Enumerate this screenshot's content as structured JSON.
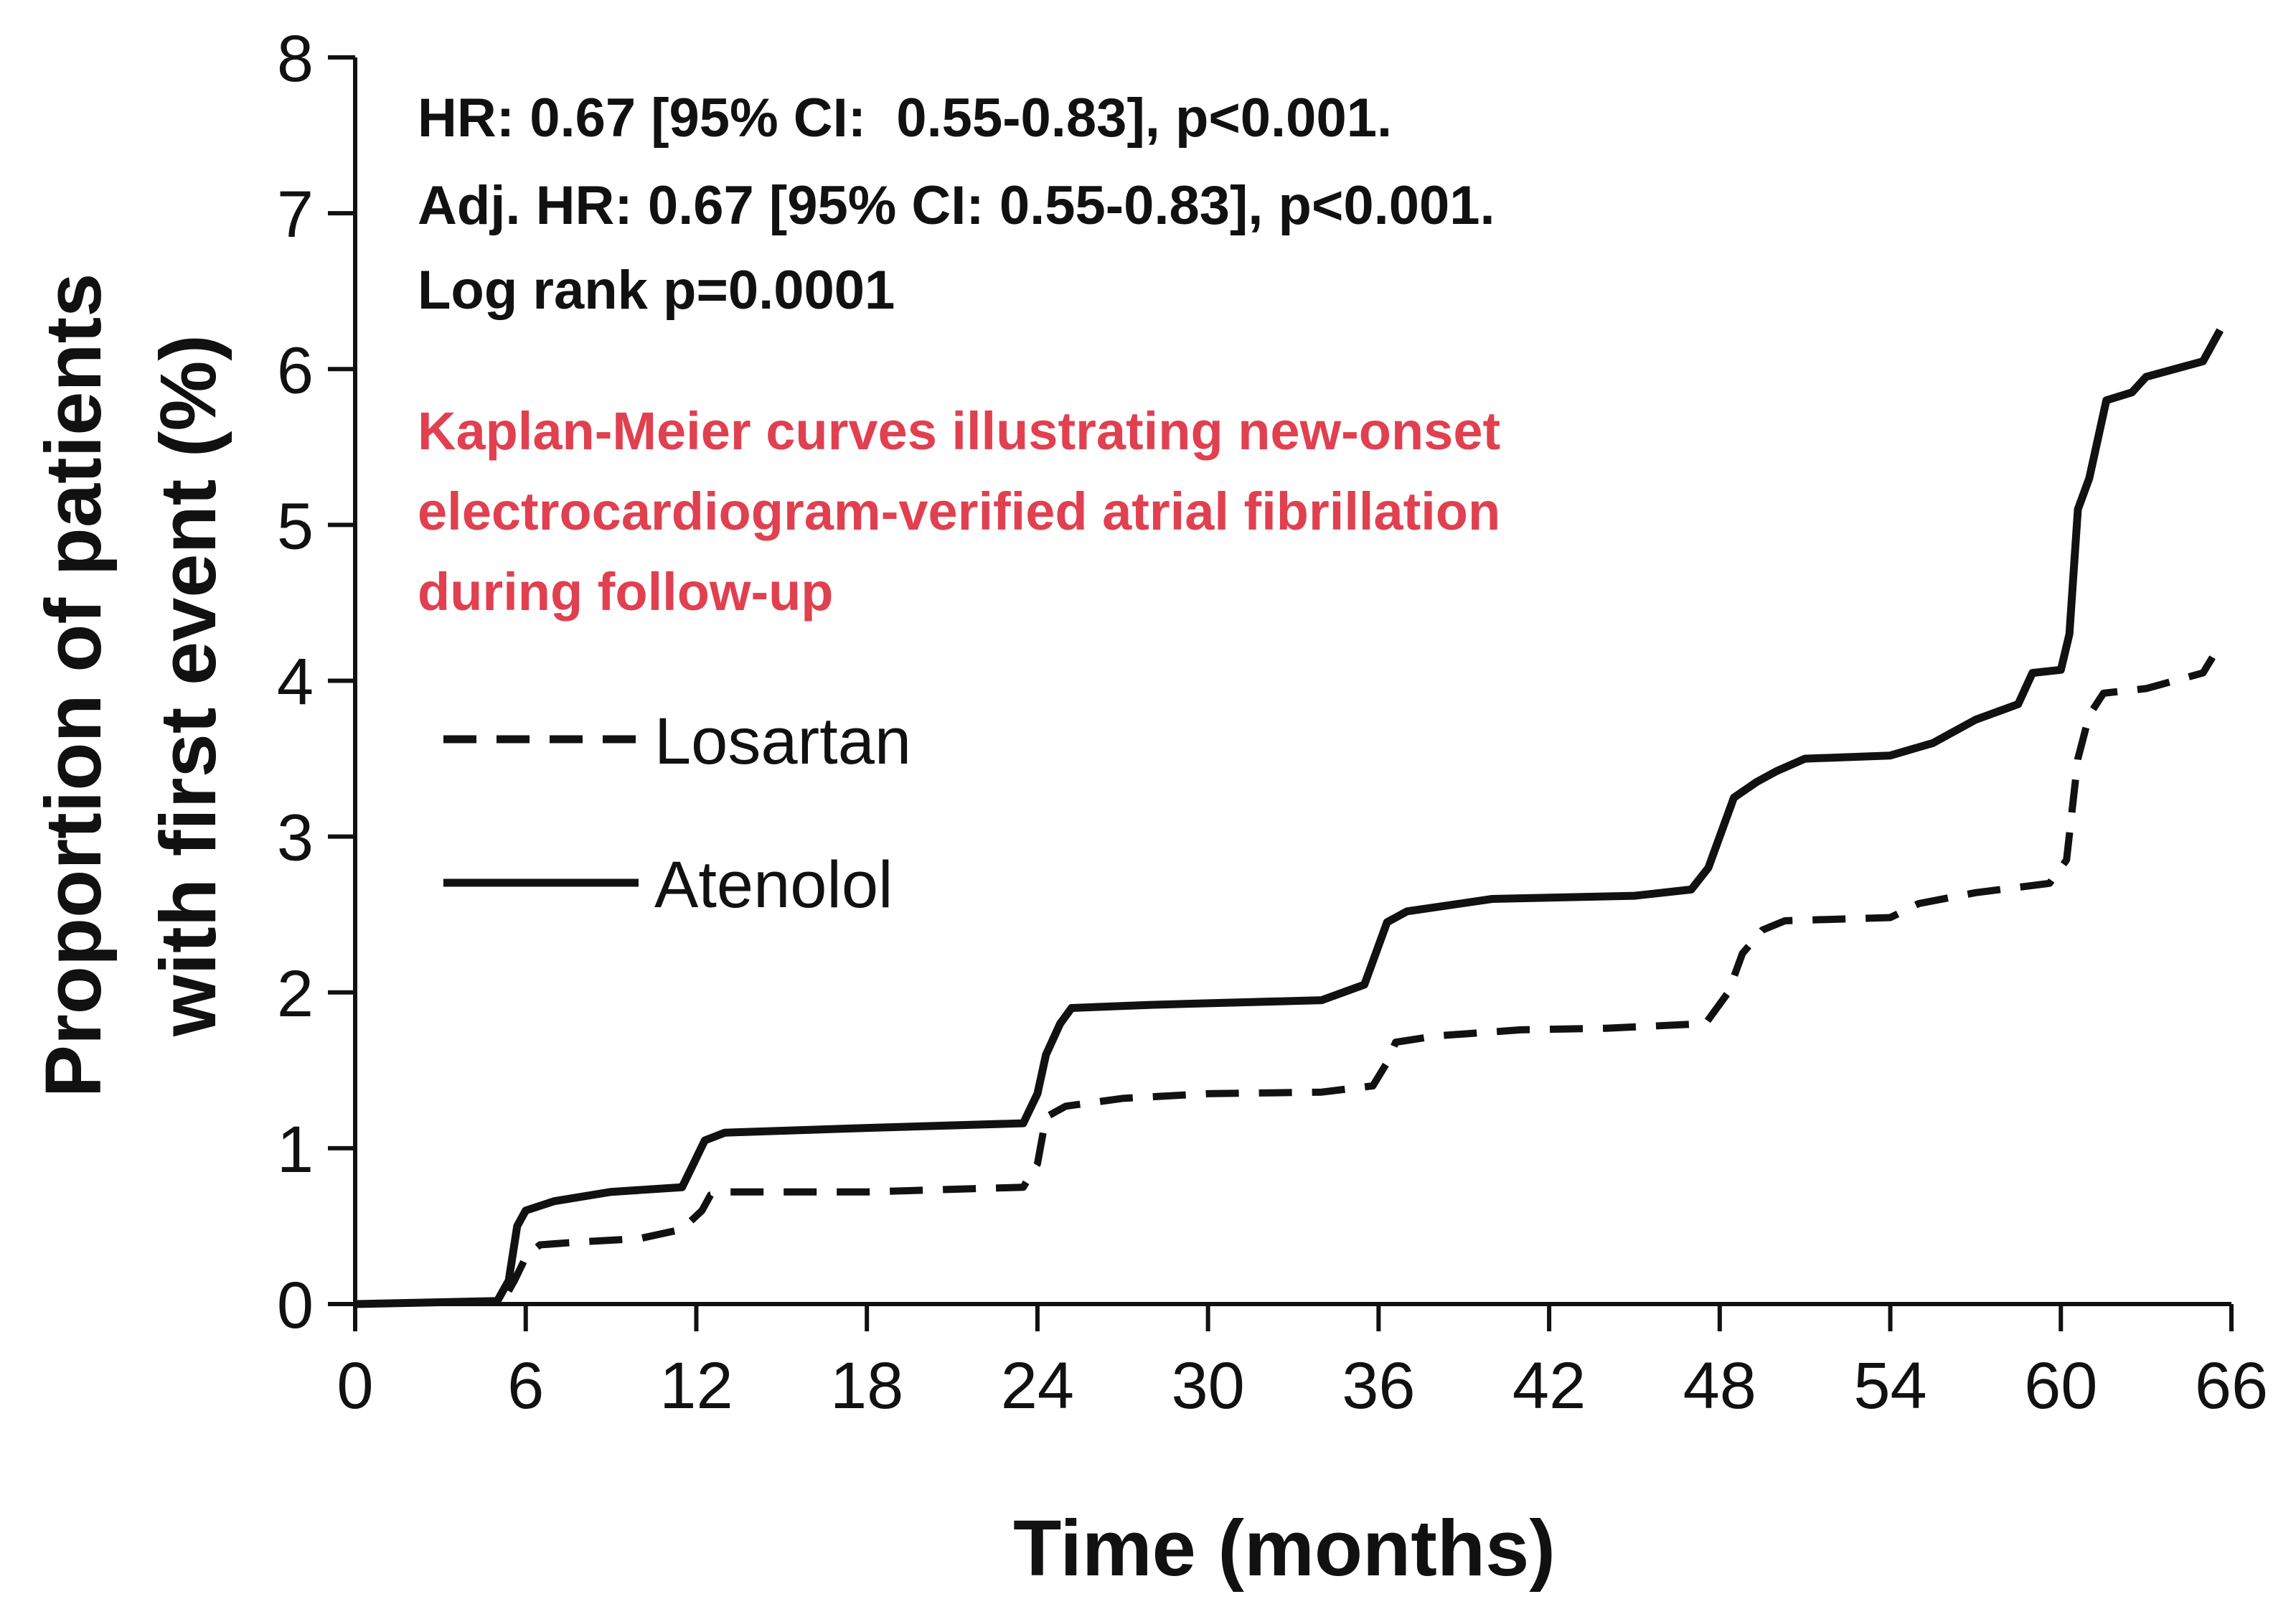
{
  "chart_data": {
    "type": "line",
    "xlabel": "Time (months)",
    "ylabel_lines": [
      "Proportion of patients",
      "with first event (%)"
    ],
    "xlim": [
      0,
      66
    ],
    "ylim": [
      0,
      8
    ],
    "x_ticks": [
      0,
      6,
      12,
      18,
      24,
      30,
      36,
      42,
      48,
      54,
      60,
      66
    ],
    "y_ticks": [
      0,
      1,
      2,
      3,
      4,
      5,
      6,
      7,
      8
    ],
    "grid": false,
    "legend_position": "middle-left",
    "annotations": [
      "HR: 0.67 [95% CI:  0.55-0.83], p<0.001.",
      "Adj. HR: 0.67 [95% CI: 0.55-0.83], p<0.001.",
      "Log rank p=0.0001"
    ],
    "caption_lines": [
      "Kaplan-Meier curves illustrating new-onset",
      "electrocardiogram-verified atrial fibrillation",
      "during follow-up"
    ],
    "caption_color": "#e0404f",
    "series": [
      {
        "name": "Losartan",
        "style": "dashed",
        "color": "#111111",
        "points": [
          [
            0,
            0
          ],
          [
            5.2,
            0.02
          ],
          [
            5.6,
            0.15
          ],
          [
            6,
            0.3
          ],
          [
            6.5,
            0.38
          ],
          [
            8,
            0.4
          ],
          [
            10,
            0.42
          ],
          [
            11.5,
            0.48
          ],
          [
            12.2,
            0.6
          ],
          [
            12.5,
            0.7
          ],
          [
            13,
            0.72
          ],
          [
            18,
            0.72
          ],
          [
            23.5,
            0.75
          ],
          [
            24,
            0.9
          ],
          [
            24.3,
            1.2
          ],
          [
            25,
            1.27
          ],
          [
            27,
            1.32
          ],
          [
            30,
            1.35
          ],
          [
            34,
            1.36
          ],
          [
            35.8,
            1.4
          ],
          [
            36.3,
            1.55
          ],
          [
            36.6,
            1.68
          ],
          [
            38,
            1.72
          ],
          [
            41,
            1.76
          ],
          [
            44,
            1.77
          ],
          [
            47.5,
            1.8
          ],
          [
            48.3,
            2.0
          ],
          [
            48.8,
            2.25
          ],
          [
            49.5,
            2.4
          ],
          [
            50.3,
            2.46
          ],
          [
            54,
            2.48
          ],
          [
            55,
            2.57
          ],
          [
            57,
            2.64
          ],
          [
            59.6,
            2.7
          ],
          [
            60.2,
            2.85
          ],
          [
            60.6,
            3.5
          ],
          [
            61,
            3.78
          ],
          [
            61.5,
            3.92
          ],
          [
            63,
            3.95
          ],
          [
            65,
            4.05
          ],
          [
            65.5,
            4.2
          ]
        ]
      },
      {
        "name": "Atenolol",
        "style": "solid",
        "color": "#111111",
        "points": [
          [
            0,
            0
          ],
          [
            5,
            0.02
          ],
          [
            5.4,
            0.15
          ],
          [
            5.7,
            0.5
          ],
          [
            6,
            0.6
          ],
          [
            7,
            0.66
          ],
          [
            9,
            0.72
          ],
          [
            11.5,
            0.75
          ],
          [
            11.9,
            0.9
          ],
          [
            12.3,
            1.05
          ],
          [
            13,
            1.1
          ],
          [
            18,
            1.13
          ],
          [
            23.5,
            1.16
          ],
          [
            24,
            1.35
          ],
          [
            24.3,
            1.6
          ],
          [
            24.8,
            1.8
          ],
          [
            25.2,
            1.9
          ],
          [
            28,
            1.92
          ],
          [
            30,
            1.93
          ],
          [
            34,
            1.95
          ],
          [
            35.5,
            2.05
          ],
          [
            35.9,
            2.25
          ],
          [
            36.3,
            2.45
          ],
          [
            37,
            2.52
          ],
          [
            38.5,
            2.56
          ],
          [
            40,
            2.6
          ],
          [
            45,
            2.62
          ],
          [
            47,
            2.66
          ],
          [
            47.6,
            2.8
          ],
          [
            48,
            3.0
          ],
          [
            48.5,
            3.25
          ],
          [
            49.3,
            3.35
          ],
          [
            50,
            3.42
          ],
          [
            51,
            3.5
          ],
          [
            54,
            3.52
          ],
          [
            55.5,
            3.6
          ],
          [
            57,
            3.75
          ],
          [
            58.5,
            3.85
          ],
          [
            59,
            4.05
          ],
          [
            60,
            4.07
          ],
          [
            60.3,
            4.3
          ],
          [
            60.6,
            5.1
          ],
          [
            61,
            5.3
          ],
          [
            61.6,
            5.8
          ],
          [
            62.5,
            5.85
          ],
          [
            63,
            5.95
          ],
          [
            65,
            6.05
          ],
          [
            65.6,
            6.25
          ]
        ]
      }
    ]
  }
}
